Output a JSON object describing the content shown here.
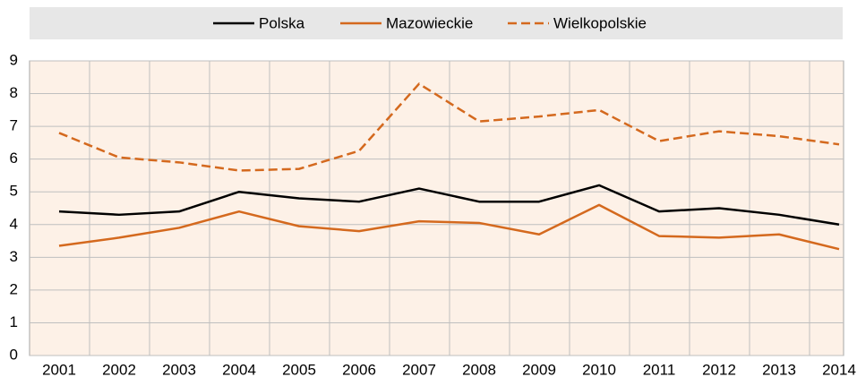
{
  "chart_data": {
    "type": "line",
    "categories": [
      "2001",
      "2002",
      "2003",
      "2004",
      "2005",
      "2006",
      "2007",
      "2008",
      "2009",
      "2010",
      "2011",
      "2012",
      "2013",
      "2014"
    ],
    "series": [
      {
        "name": "Polska",
        "color": "#000000",
        "dashed": false,
        "values": [
          4.4,
          4.3,
          4.4,
          5.0,
          4.8,
          4.7,
          5.1,
          4.7,
          4.7,
          5.2,
          4.4,
          4.5,
          4.3,
          4.0
        ]
      },
      {
        "name": "Mazowieckie",
        "color": "#d4691e",
        "dashed": false,
        "values": [
          3.35,
          3.6,
          3.9,
          4.4,
          3.95,
          3.8,
          4.1,
          4.05,
          3.7,
          4.6,
          3.65,
          3.6,
          3.7,
          3.25
        ]
      },
      {
        "name": "Wielkopolskie",
        "color": "#d4691e",
        "dashed": true,
        "values": [
          6.8,
          6.05,
          5.9,
          5.65,
          5.7,
          6.25,
          8.3,
          7.15,
          7.3,
          7.5,
          6.55,
          6.85,
          6.7,
          6.45
        ]
      }
    ],
    "ylim": [
      0,
      9
    ],
    "yticks": [
      0,
      1,
      2,
      3,
      4,
      5,
      6,
      7,
      8,
      9
    ],
    "grid": true,
    "legend": "top"
  }
}
